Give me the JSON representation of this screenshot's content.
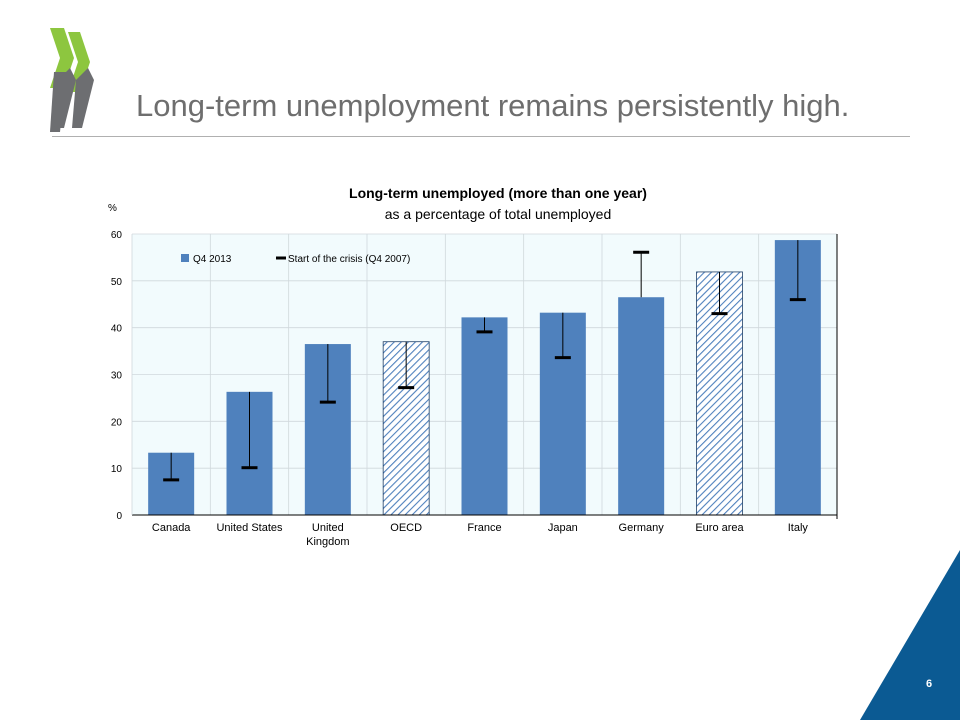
{
  "slide": {
    "title": "Long-term unemployment remains persistently high.",
    "page_number": "6"
  },
  "colors": {
    "bar_fill": "#4f81bd",
    "bar_hatch_bg": "#ffffff",
    "plot_bg": "#f2fbfd",
    "logo_green": "#8dc63f",
    "logo_grey": "#6d6e71",
    "corner_blue": "#0b5a93",
    "marker": "#000000"
  },
  "chart_data": {
    "type": "bar",
    "title": "Long-term unemployed (more than one year)",
    "subtitle": "as a percentage of total unemployed",
    "ylabel": "%",
    "xlabel": "",
    "ylim": [
      0,
      60
    ],
    "yticks": [
      0,
      10,
      20,
      30,
      40,
      50,
      60
    ],
    "categories": [
      "Canada",
      "United States",
      "United Kingdom",
      "OECD",
      "France",
      "Japan",
      "Germany",
      "Euro area",
      "Italy"
    ],
    "category_lines": [
      [
        "Canada"
      ],
      [
        "United States"
      ],
      [
        "United",
        "Kingdom"
      ],
      [
        "OECD"
      ],
      [
        "France"
      ],
      [
        "Japan"
      ],
      [
        "Germany"
      ],
      [
        "Euro area"
      ],
      [
        "Italy"
      ]
    ],
    "hatched": [
      false,
      false,
      false,
      true,
      false,
      false,
      false,
      true,
      false
    ],
    "series": [
      {
        "name": "Q4 2013",
        "kind": "bar",
        "values": [
          13.3,
          26.3,
          36.5,
          37.0,
          42.2,
          43.2,
          46.5,
          51.9,
          58.7
        ]
      },
      {
        "name": "Start of the crisis (Q4 2007)",
        "kind": "marker",
        "values": [
          7.5,
          10.1,
          24.1,
          27.2,
          39.1,
          33.6,
          56.1,
          43.0,
          46.0
        ]
      }
    ],
    "grid": true,
    "legend_position": "top-left"
  }
}
